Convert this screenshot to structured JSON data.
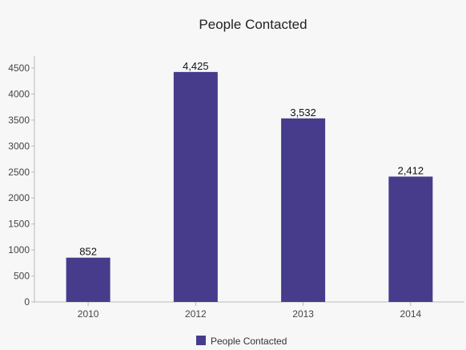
{
  "chart_data": {
    "type": "bar",
    "title": "People Contacted",
    "categories": [
      "2010",
      "2012",
      "2013",
      "2014"
    ],
    "series": [
      {
        "name": "People Contacted",
        "values": [
          852,
          4425,
          3532,
          2412
        ],
        "labels": [
          "852",
          "4,425",
          "3,532",
          "2,412"
        ],
        "color": "#463c8b"
      }
    ],
    "xlabel": "",
    "ylabel": "",
    "ylim": [
      0,
      4500
    ],
    "yticks": [
      0,
      500,
      1000,
      1500,
      2000,
      2500,
      3000,
      3500,
      4000,
      4500
    ],
    "grid": false,
    "legend": "bottom-center"
  }
}
